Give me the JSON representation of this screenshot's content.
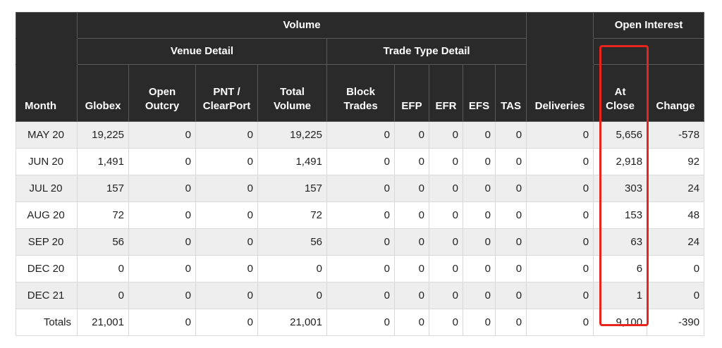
{
  "header": {
    "volume": "Volume",
    "open_interest": "Open Interest",
    "venue_detail": "Venue Detail",
    "trade_type_detail": "Trade Type Detail",
    "columns": {
      "month": "Month",
      "globex": "Globex",
      "open_outcry": [
        "Open",
        "Outcry"
      ],
      "pnt_clearport": [
        "PNT /",
        "ClearPort"
      ],
      "total_volume": [
        "Total",
        "Volume"
      ],
      "block_trades": [
        "Block",
        "Trades"
      ],
      "efp": "EFP",
      "efr": "EFR",
      "efs": "EFS",
      "tas": "TAS",
      "deliveries": "Deliveries",
      "at_close": [
        "At",
        "Close"
      ],
      "change": "Change"
    }
  },
  "rows": [
    {
      "month": "MAY 20",
      "globex": "19,225",
      "open_outcry": "0",
      "pnt_clearport": "0",
      "total_volume": "19,225",
      "block_trades": "0",
      "efp": "0",
      "efr": "0",
      "efs": "0",
      "tas": "0",
      "deliveries": "0",
      "at_close": "5,656",
      "change": "-578"
    },
    {
      "month": "JUN 20",
      "globex": "1,491",
      "open_outcry": "0",
      "pnt_clearport": "0",
      "total_volume": "1,491",
      "block_trades": "0",
      "efp": "0",
      "efr": "0",
      "efs": "0",
      "tas": "0",
      "deliveries": "0",
      "at_close": "2,918",
      "change": "92"
    },
    {
      "month": "JUL 20",
      "globex": "157",
      "open_outcry": "0",
      "pnt_clearport": "0",
      "total_volume": "157",
      "block_trades": "0",
      "efp": "0",
      "efr": "0",
      "efs": "0",
      "tas": "0",
      "deliveries": "0",
      "at_close": "303",
      "change": "24"
    },
    {
      "month": "AUG 20",
      "globex": "72",
      "open_outcry": "0",
      "pnt_clearport": "0",
      "total_volume": "72",
      "block_trades": "0",
      "efp": "0",
      "efr": "0",
      "efs": "0",
      "tas": "0",
      "deliveries": "0",
      "at_close": "153",
      "change": "48"
    },
    {
      "month": "SEP 20",
      "globex": "56",
      "open_outcry": "0",
      "pnt_clearport": "0",
      "total_volume": "56",
      "block_trades": "0",
      "efp": "0",
      "efr": "0",
      "efs": "0",
      "tas": "0",
      "deliveries": "0",
      "at_close": "63",
      "change": "24"
    },
    {
      "month": "DEC 20",
      "globex": "0",
      "open_outcry": "0",
      "pnt_clearport": "0",
      "total_volume": "0",
      "block_trades": "0",
      "efp": "0",
      "efr": "0",
      "efs": "0",
      "tas": "0",
      "deliveries": "0",
      "at_close": "6",
      "change": "0"
    },
    {
      "month": "DEC 21",
      "globex": "0",
      "open_outcry": "0",
      "pnt_clearport": "0",
      "total_volume": "0",
      "block_trades": "0",
      "efp": "0",
      "efr": "0",
      "efs": "0",
      "tas": "0",
      "deliveries": "0",
      "at_close": "1",
      "change": "0"
    }
  ],
  "totals": {
    "month": "Totals",
    "globex": "21,001",
    "open_outcry": "0",
    "pnt_clearport": "0",
    "total_volume": "21,001",
    "block_trades": "0",
    "efp": "0",
    "efr": "0",
    "efs": "0",
    "tas": "0",
    "deliveries": "0",
    "at_close": "9,100",
    "change": "-390"
  },
  "colors": {
    "header_bg": "#2a2a2a",
    "row_shade": "#eeeeee",
    "highlight": "#e8241f"
  }
}
